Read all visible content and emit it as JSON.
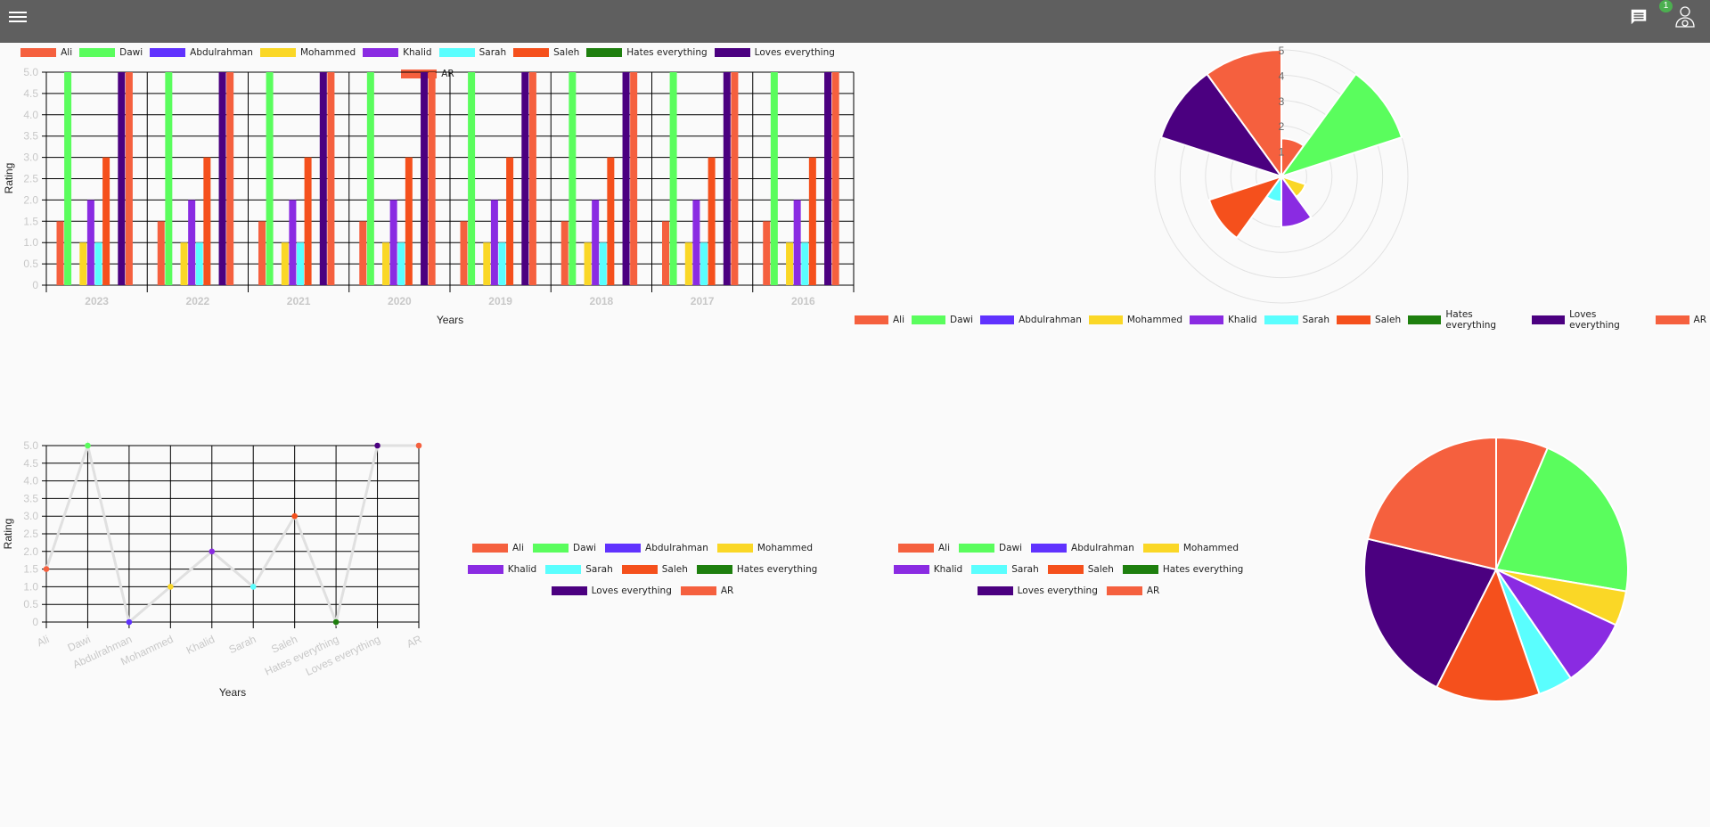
{
  "topbar": {
    "menu_icon": "hamburger-menu-icon",
    "chat_icon": "chat-icon",
    "notification_count": "1",
    "user_icon": "user-settings-icon"
  },
  "series": [
    {
      "name": "Ali",
      "color": "#f5603e"
    },
    {
      "name": "Dawi",
      "color": "#5afd5d"
    },
    {
      "name": "Abdulrahman",
      "color": "#6032fe"
    },
    {
      "name": "Mohammed",
      "color": "#fad726"
    },
    {
      "name": "Khalid",
      "color": "#8a2be2"
    },
    {
      "name": "Sarah",
      "color": "#5afefe"
    },
    {
      "name": "Saleh",
      "color": "#f5501c"
    },
    {
      "name": "Hates everything",
      "color": "#1e7f0e"
    },
    {
      "name": "Loves everything",
      "color": "#4b0080"
    },
    {
      "name": "AR",
      "color": "#f5603e"
    }
  ],
  "chart_data": [
    {
      "type": "bar",
      "title": "",
      "xlabel": "Years",
      "ylabel": "Rating",
      "ylim": [
        0,
        5
      ],
      "yticks": [
        "0",
        "0.5",
        "1.0",
        "1.5",
        "2.0",
        "2.5",
        "3.0",
        "3.5",
        "4.0",
        "4.5",
        "5.0"
      ],
      "categories": [
        "2023",
        "2022",
        "2021",
        "2020",
        "2019",
        "2018",
        "2017",
        "2016"
      ],
      "series": [
        {
          "name": "Ali",
          "values": [
            1.5,
            1.5,
            1.5,
            1.5,
            1.5,
            1.5,
            1.5,
            1.5
          ]
        },
        {
          "name": "Dawi",
          "values": [
            5,
            5,
            5,
            5,
            5,
            5,
            5,
            5
          ]
        },
        {
          "name": "Abdulrahman",
          "values": [
            0,
            0,
            0,
            0,
            0,
            0,
            0,
            0
          ]
        },
        {
          "name": "Mohammed",
          "values": [
            1,
            1,
            1,
            1,
            1,
            1,
            1,
            1
          ]
        },
        {
          "name": "Khalid",
          "values": [
            2,
            2,
            2,
            2,
            2,
            2,
            2,
            2
          ]
        },
        {
          "name": "Sarah",
          "values": [
            1,
            1,
            1,
            1,
            1,
            1,
            1,
            1
          ]
        },
        {
          "name": "Saleh",
          "values": [
            3,
            3,
            3,
            3,
            3,
            3,
            3,
            3
          ]
        },
        {
          "name": "Hates everything",
          "values": [
            0,
            0,
            0,
            0,
            0,
            0,
            0,
            0
          ]
        },
        {
          "name": "Loves everything",
          "values": [
            5,
            5,
            5,
            5,
            5,
            5,
            5,
            5
          ]
        },
        {
          "name": "AR",
          "values": [
            5,
            5,
            5,
            5,
            5,
            5,
            5,
            5
          ]
        }
      ],
      "grid": true,
      "legend_position": "top"
    },
    {
      "type": "polarArea",
      "categories": [
        "Ali",
        "Dawi",
        "Abdulrahman",
        "Mohammed",
        "Khalid",
        "Sarah",
        "Saleh",
        "Hates everything",
        "Loves everything",
        "AR"
      ],
      "values": [
        1.5,
        5,
        0,
        1,
        2,
        1,
        3,
        0,
        5,
        5
      ],
      "rlim": [
        0,
        5
      ],
      "rticks": [
        "1",
        "2",
        "3",
        "4",
        "5"
      ],
      "legend_position": "bottom"
    },
    {
      "type": "line",
      "xlabel": "Years",
      "ylabel": "Rating",
      "ylim": [
        0,
        5
      ],
      "yticks": [
        "0",
        "0.5",
        "1.0",
        "1.5",
        "2.0",
        "2.5",
        "3.0",
        "3.5",
        "4.0",
        "4.5",
        "5.0"
      ],
      "categories": [
        "Ali",
        "Dawi",
        "Abdulrahman",
        "Mohammed",
        "Khalid",
        "Sarah",
        "Saleh",
        "Hates everything",
        "Loves everything",
        "AR"
      ],
      "values": [
        1.5,
        5,
        0,
        1,
        2,
        1,
        3,
        0,
        5,
        5
      ],
      "grid": true,
      "legend_position": "right"
    },
    {
      "type": "pie",
      "categories": [
        "Ali",
        "Dawi",
        "Abdulrahman",
        "Mohammed",
        "Khalid",
        "Sarah",
        "Saleh",
        "Hates everything",
        "Loves everything",
        "AR"
      ],
      "values": [
        1.5,
        5,
        0,
        1,
        2,
        1,
        3,
        0,
        5,
        5
      ],
      "legend_position": "left"
    }
  ]
}
